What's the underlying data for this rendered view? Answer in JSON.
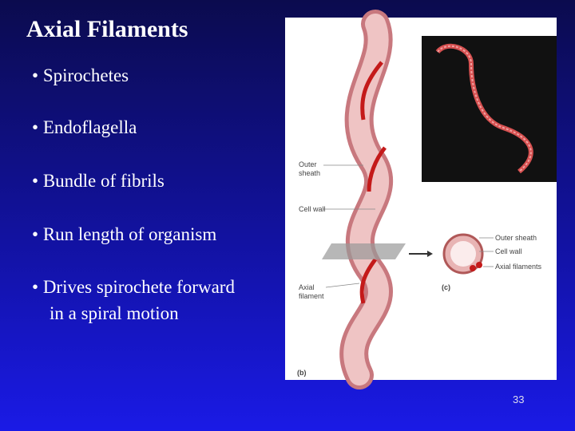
{
  "slide": {
    "title": "Axial Filaments",
    "bullets": [
      {
        "text": "Spirochetes"
      },
      {
        "text": "Endoflagella"
      },
      {
        "text": "Bundle of fibrils"
      },
      {
        "text": "Run length of organism"
      },
      {
        "text": "Drives spirochete forward",
        "continuation": "in a spiral motion"
      }
    ],
    "figure": {
      "labels_b": [
        "Outer sheath",
        "Cell wall",
        "Axial filament"
      ],
      "panel_b": "(b)",
      "panel_c": "(c)",
      "labels_c": [
        "Outer sheath",
        "Cell wall",
        "Axial filaments"
      ]
    },
    "page_number": "33"
  }
}
